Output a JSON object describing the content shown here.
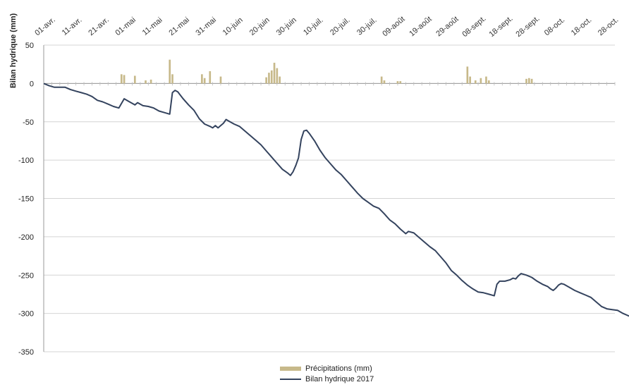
{
  "chart_data": {
    "type": "bar+line",
    "title": "",
    "ylabel": "Bilan hydrique (mm)",
    "xlabel": "",
    "ylim": [
      -350,
      50
    ],
    "yticks": [
      50,
      0,
      -50,
      -100,
      -150,
      -200,
      -250,
      -300,
      -350
    ],
    "grid": true,
    "legend_position": "bottom",
    "x_range_days": [
      0,
      213
    ],
    "x_ticks": [
      {
        "day": 0,
        "label": "01-avr."
      },
      {
        "day": 10,
        "label": "11-avr."
      },
      {
        "day": 20,
        "label": "21-avr."
      },
      {
        "day": 30,
        "label": "01-mai"
      },
      {
        "day": 40,
        "label": "11-mai"
      },
      {
        "day": 50,
        "label": "21-mai"
      },
      {
        "day": 60,
        "label": "31-mai"
      },
      {
        "day": 70,
        "label": "10-juin"
      },
      {
        "day": 80,
        "label": "20-juin"
      },
      {
        "day": 90,
        "label": "30-juin"
      },
      {
        "day": 100,
        "label": "10-juil."
      },
      {
        "day": 110,
        "label": "20-juil."
      },
      {
        "day": 120,
        "label": "30-juil."
      },
      {
        "day": 130,
        "label": "09-août"
      },
      {
        "day": 140,
        "label": "19-août"
      },
      {
        "day": 150,
        "label": "29-août"
      },
      {
        "day": 160,
        "label": "08-sept."
      },
      {
        "day": 170,
        "label": "18-sept."
      },
      {
        "day": 180,
        "label": "28-sept."
      },
      {
        "day": 190,
        "label": "08-oct."
      },
      {
        "day": 200,
        "label": "18-oct."
      },
      {
        "day": 210,
        "label": "28-oct."
      }
    ],
    "series": [
      {
        "name": "Précipitations (mm)",
        "kind": "bar",
        "color": "#c7b98a",
        "points": [
          [
            29,
            12
          ],
          [
            30,
            11
          ],
          [
            34,
            10
          ],
          [
            38,
            4
          ],
          [
            40,
            5
          ],
          [
            47,
            31
          ],
          [
            48,
            12
          ],
          [
            59,
            12
          ],
          [
            60,
            7
          ],
          [
            62,
            16
          ],
          [
            66,
            9
          ],
          [
            83,
            8
          ],
          [
            84,
            14
          ],
          [
            85,
            17
          ],
          [
            86,
            27
          ],
          [
            87,
            20
          ],
          [
            88,
            9
          ],
          [
            126,
            9
          ],
          [
            127,
            4
          ],
          [
            132,
            3
          ],
          [
            133,
            3
          ],
          [
            158,
            22
          ],
          [
            159,
            9
          ],
          [
            161,
            4
          ],
          [
            163,
            7
          ],
          [
            165,
            9
          ],
          [
            166,
            4
          ],
          [
            180,
            6
          ],
          [
            181,
            7
          ],
          [
            182,
            6
          ]
        ]
      },
      {
        "name": "Bilan hydrique 2017",
        "kind": "line",
        "color": "#34435e",
        "points": [
          [
            0,
            0
          ],
          [
            2,
            -3
          ],
          [
            4,
            -5
          ],
          [
            6,
            -5
          ],
          [
            8,
            -5
          ],
          [
            10,
            -8
          ],
          [
            12,
            -10
          ],
          [
            14,
            -12
          ],
          [
            16,
            -14
          ],
          [
            18,
            -17
          ],
          [
            20,
            -22
          ],
          [
            22,
            -24
          ],
          [
            24,
            -27
          ],
          [
            26,
            -30
          ],
          [
            28,
            -32
          ],
          [
            30,
            -20
          ],
          [
            32,
            -24
          ],
          [
            34,
            -28
          ],
          [
            35,
            -25
          ],
          [
            37,
            -29
          ],
          [
            39,
            -30
          ],
          [
            41,
            -32
          ],
          [
            43,
            -36
          ],
          [
            45,
            -38
          ],
          [
            47,
            -40
          ],
          [
            48,
            -12
          ],
          [
            49,
            -9
          ],
          [
            50,
            -11
          ],
          [
            52,
            -20
          ],
          [
            54,
            -28
          ],
          [
            56,
            -35
          ],
          [
            58,
            -46
          ],
          [
            60,
            -53
          ],
          [
            62,
            -56
          ],
          [
            63,
            -58
          ],
          [
            64,
            -55
          ],
          [
            65,
            -58
          ],
          [
            67,
            -52
          ],
          [
            68,
            -47
          ],
          [
            69,
            -49
          ],
          [
            71,
            -53
          ],
          [
            73,
            -56
          ],
          [
            75,
            -62
          ],
          [
            77,
            -68
          ],
          [
            79,
            -74
          ],
          [
            81,
            -80
          ],
          [
            83,
            -88
          ],
          [
            85,
            -96
          ],
          [
            87,
            -104
          ],
          [
            89,
            -112
          ],
          [
            91,
            -117
          ],
          [
            92,
            -120
          ],
          [
            93,
            -115
          ],
          [
            94,
            -107
          ],
          [
            95,
            -97
          ],
          [
            96,
            -73
          ],
          [
            97,
            -62
          ],
          [
            98,
            -61
          ],
          [
            99,
            -65
          ],
          [
            101,
            -75
          ],
          [
            103,
            -87
          ],
          [
            105,
            -97
          ],
          [
            107,
            -105
          ],
          [
            109,
            -113
          ],
          [
            111,
            -119
          ],
          [
            113,
            -127
          ],
          [
            115,
            -135
          ],
          [
            117,
            -143
          ],
          [
            119,
            -150
          ],
          [
            121,
            -155
          ],
          [
            123,
            -160
          ],
          [
            125,
            -163
          ],
          [
            127,
            -170
          ],
          [
            129,
            -178
          ],
          [
            131,
            -183
          ],
          [
            133,
            -190
          ],
          [
            135,
            -196
          ],
          [
            136,
            -193
          ],
          [
            138,
            -195
          ],
          [
            140,
            -201
          ],
          [
            142,
            -207
          ],
          [
            144,
            -213
          ],
          [
            146,
            -218
          ],
          [
            148,
            -226
          ],
          [
            150,
            -234
          ],
          [
            152,
            -244
          ],
          [
            154,
            -250
          ],
          [
            156,
            -257
          ],
          [
            158,
            -263
          ],
          [
            160,
            -268
          ],
          [
            162,
            -272
          ],
          [
            164,
            -273
          ],
          [
            166,
            -275
          ],
          [
            168,
            -277
          ],
          [
            169,
            -262
          ],
          [
            170,
            -258
          ],
          [
            172,
            -258
          ],
          [
            174,
            -256
          ],
          [
            175,
            -254
          ],
          [
            176,
            -255
          ],
          [
            177,
            -251
          ],
          [
            178,
            -248
          ],
          [
            180,
            -250
          ],
          [
            182,
            -253
          ],
          [
            184,
            -258
          ],
          [
            186,
            -262
          ],
          [
            188,
            -265
          ],
          [
            189,
            -268
          ],
          [
            190,
            -270
          ],
          [
            191,
            -267
          ],
          [
            192,
            -263
          ],
          [
            193,
            -261
          ],
          [
            194,
            -262
          ],
          [
            196,
            -266
          ],
          [
            198,
            -270
          ],
          [
            200,
            -273
          ],
          [
            202,
            -276
          ],
          [
            204,
            -279
          ],
          [
            206,
            -285
          ],
          [
            208,
            -291
          ],
          [
            210,
            -294
          ],
          [
            212,
            -295
          ],
          [
            214,
            -296
          ],
          [
            216,
            -300
          ],
          [
            218,
            -303
          ],
          [
            220,
            -305
          ],
          [
            221,
            -307
          ]
        ]
      }
    ]
  }
}
